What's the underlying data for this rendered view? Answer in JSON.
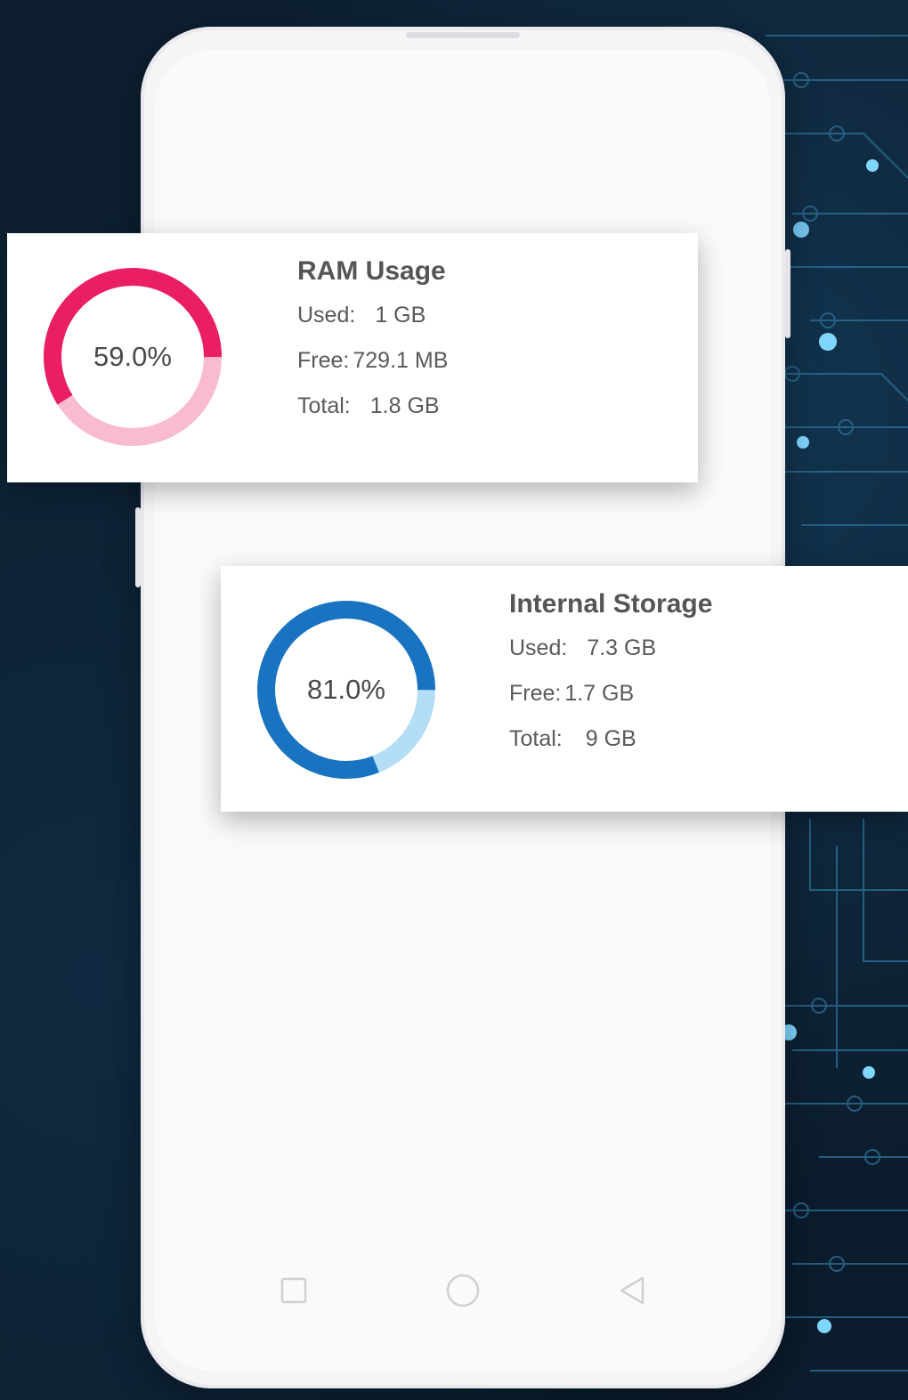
{
  "ram": {
    "title": "RAM Usage",
    "percent_label": "59.0%",
    "percent": 59.0,
    "used_label": "Used:",
    "used_value": "1 GB",
    "free_label": "Free:",
    "free_value": "729.1 MB",
    "total_label": "Total:",
    "total_value": "1.8 GB",
    "color_used": "#e91e63",
    "color_free": "#f8bbd0"
  },
  "storage": {
    "title": "Internal Storage",
    "percent_label": "81.0%",
    "percent": 81.0,
    "used_label": "Used:",
    "used_value": "7.3 GB",
    "free_label": "Free:",
    "free_value": "1.7 GB",
    "total_label": "Total:",
    "total_value": "9 GB",
    "color_used": "#1a73c1",
    "color_free": "#b3def5"
  },
  "nav": {
    "icons": [
      "square-icon",
      "circle-icon",
      "triangle-back-icon"
    ]
  }
}
